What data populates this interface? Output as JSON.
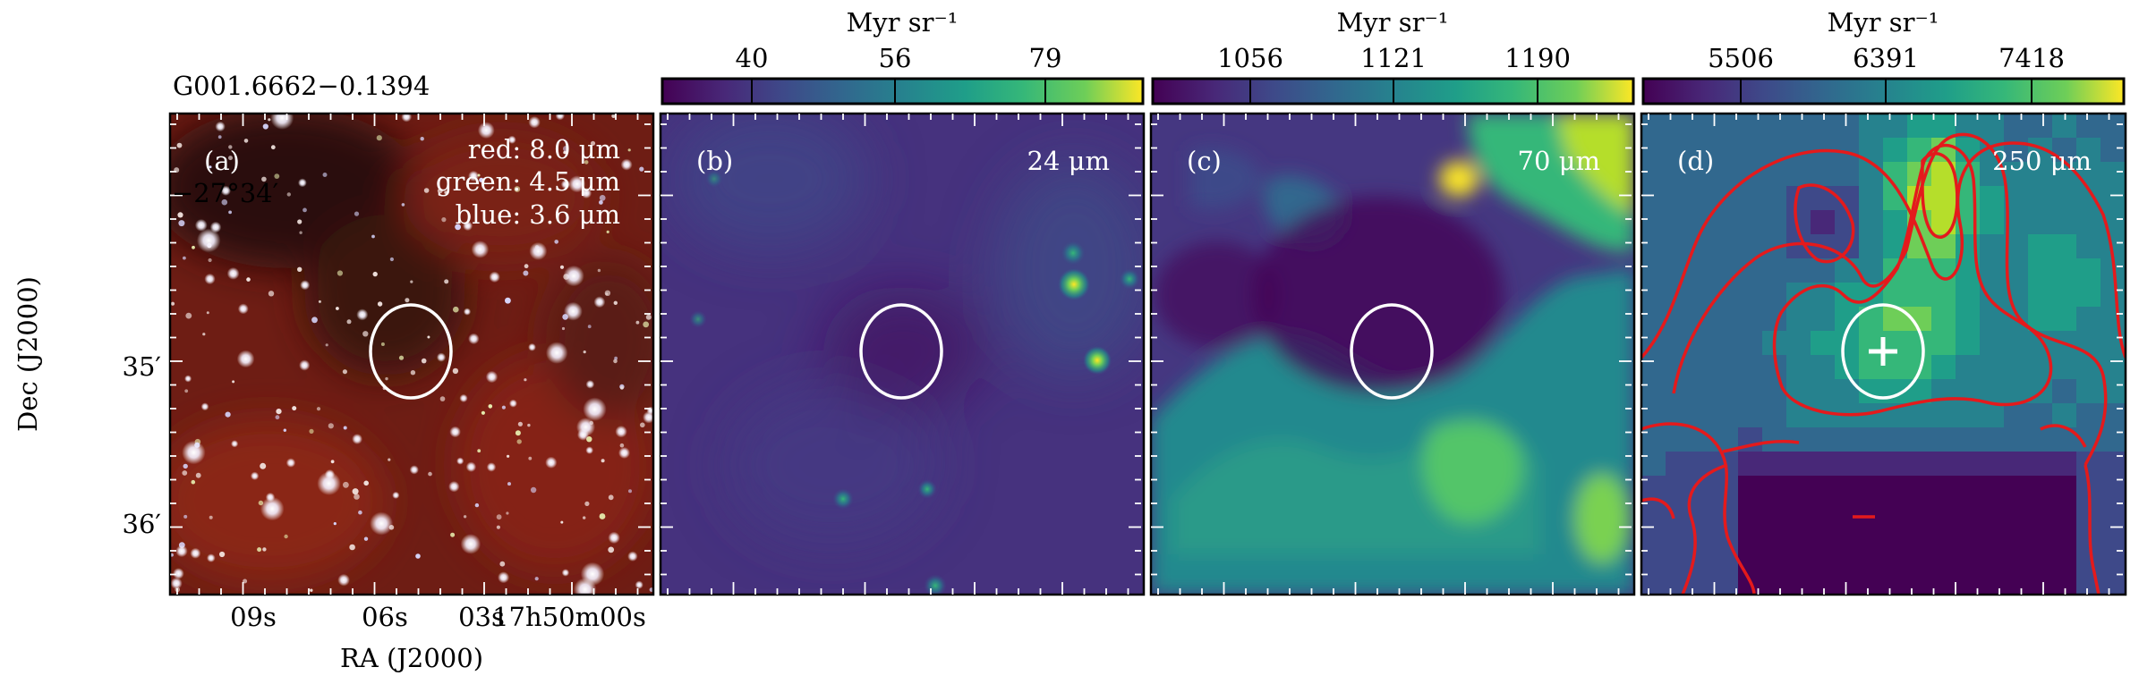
{
  "figure": {
    "source_name": "G001.6662−0.1394",
    "x_axis_label": "RA (J2000)",
    "y_axis_label": "Dec (J2000)",
    "ra_tick_labels": [
      "09s",
      "06s",
      "03s",
      "17h50m00s"
    ],
    "dec_tick_labels": [
      "−27°34′",
      "35′",
      "36′"
    ],
    "panels": [
      {
        "id": "a",
        "letter": "(a)",
        "band_lines": [
          "red: 8.0 μm",
          "green: 4.5 μm",
          "blue: 3.6 μm"
        ],
        "colormap": "RGB composite"
      },
      {
        "id": "b",
        "letter": "(b)",
        "band": "24 μm",
        "colorbar": {
          "unit": "Myr sr⁻¹",
          "ticks": [
            "40",
            "56",
            "79"
          ],
          "colormap": "viridis"
        }
      },
      {
        "id": "c",
        "letter": "(c)",
        "band": "70 μm",
        "colorbar": {
          "unit": "Myr sr⁻¹",
          "ticks": [
            "1056",
            "1121",
            "1190"
          ],
          "colormap": "viridis"
        }
      },
      {
        "id": "d",
        "letter": "(d)",
        "band": "250 μm",
        "colorbar": {
          "unit": "Myr sr⁻¹",
          "ticks": [
            "5506",
            "6391",
            "7418"
          ],
          "colormap": "viridis"
        },
        "overlay": "red contours, white source ellipse, white plus marker"
      }
    ]
  },
  "colors": {
    "ellipse": "#ffffff",
    "contours": "#e41a1c",
    "marker": "#ffffff",
    "viridis_low": "#440154",
    "viridis_high": "#fde725"
  }
}
